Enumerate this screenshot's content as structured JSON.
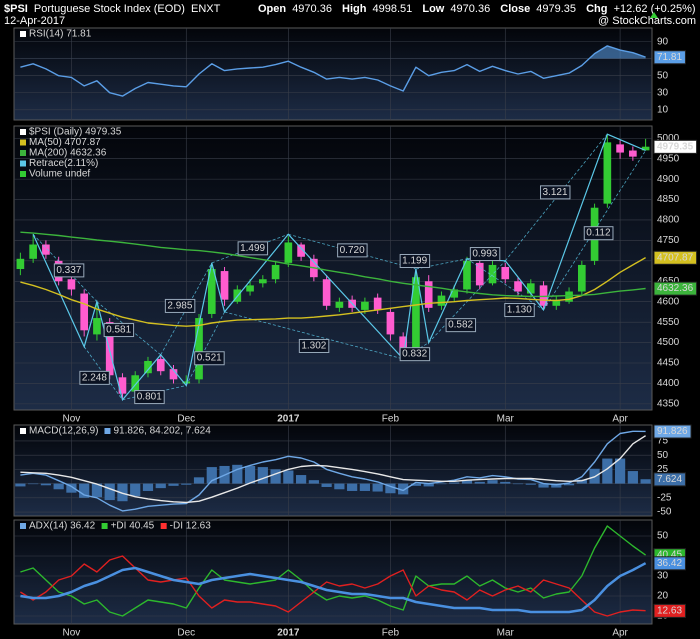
{
  "header": {
    "symbol": "$PSI",
    "name": "Portuguese Stock Index (EOD)",
    "exchange": "ENXT",
    "date": "12-Apr-2017",
    "quote": [
      {
        "label": "Open",
        "value": "4970.36"
      },
      {
        "label": "High",
        "value": "4998.51"
      },
      {
        "label": "Low",
        "value": "4970.36"
      },
      {
        "label": "Close",
        "value": "4979.35"
      },
      {
        "label": "Chg",
        "value": "+12.62 (+0.25%)"
      }
    ],
    "credit": "@ StockCharts.com"
  },
  "chart_data": [
    {
      "type": "line",
      "legend_layout": "row",
      "grid": true,
      "legend": [
        {
          "text": "RSI(14) 71.81",
          "color": "#ffffff"
        }
      ],
      "categories": [
        null,
        null,
        null,
        null,
        "Nov",
        null,
        null,
        null,
        null,
        null,
        null,
        null,
        null,
        "Dec",
        null,
        null,
        null,
        null,
        null,
        null,
        null,
        "2017",
        null,
        null,
        null,
        null,
        null,
        null,
        null,
        "Feb",
        null,
        null,
        null,
        null,
        null,
        null,
        null,
        null,
        "Mar",
        null,
        null,
        null,
        null,
        null,
        null,
        null,
        null,
        "Apr",
        null,
        null
      ],
      "series": [
        {
          "color": "#5b9ee6",
          "tag": true,
          "fill_above": 70,
          "values": [
            60,
            64,
            58,
            50,
            48,
            38,
            44,
            30,
            26,
            35,
            42,
            40,
            38,
            37,
            52,
            64,
            56,
            58,
            59,
            60,
            63,
            67,
            60,
            54,
            46,
            48,
            46,
            48,
            45,
            38,
            32,
            60,
            50,
            54,
            56,
            63,
            55,
            61,
            56,
            52,
            55,
            47,
            50,
            53,
            62,
            76,
            85,
            80,
            77,
            71.81
          ]
        }
      ],
      "ylim": [
        -2,
        106
      ],
      "yticks": [
        90,
        70,
        50,
        30,
        10
      ]
    },
    {
      "type": "candlestick",
      "legend_layout": "column",
      "grid": true,
      "x_labels": true,
      "tag": true,
      "legend": [
        {
          "text": "$PSI (Daily) 4979.35",
          "color": "#ffffff"
        },
        {
          "text": "MA(50) 4707.87",
          "color": "#d4c020"
        },
        {
          "text": "MA(200) 4632.36",
          "color": "#3cb43c"
        },
        {
          "text": "Retrace(2.11%)",
          "color": "#5bc8e8"
        },
        {
          "text": "Volume undef",
          "color": "#33cc33"
        }
      ],
      "categories": [
        null,
        null,
        null,
        null,
        "Nov",
        null,
        null,
        null,
        null,
        null,
        null,
        null,
        null,
        "Dec",
        null,
        null,
        null,
        null,
        null,
        null,
        null,
        "2017",
        null,
        null,
        null,
        null,
        null,
        null,
        null,
        "Feb",
        null,
        null,
        null,
        null,
        null,
        null,
        null,
        null,
        "Mar",
        null,
        null,
        null,
        null,
        null,
        null,
        null,
        null,
        "Apr",
        null,
        null
      ],
      "up_color": "#33cc33",
      "down_color": "#ff5ccf",
      "open": [
        4680,
        4705,
        4740,
        4700,
        4655,
        4620,
        4520,
        4550,
        4415,
        4380,
        4425,
        4460,
        4435,
        4400,
        4410,
        4570,
        4675,
        4600,
        4625,
        4645,
        4655,
        4695,
        4740,
        4705,
        4655,
        4585,
        4605,
        4580,
        4610,
        4575,
        4515,
        4480,
        4650,
        4590,
        4610,
        4630,
        4695,
        4645,
        4685,
        4650,
        4620,
        4640,
        4590,
        4600,
        4625,
        4700,
        4840,
        4985,
        4970,
        4970.36
      ],
      "high": [
        4720,
        4765,
        4750,
        4710,
        4665,
        4630,
        4600,
        4560,
        4425,
        4430,
        4465,
        4470,
        4445,
        4420,
        4570,
        4695,
        4685,
        4640,
        4655,
        4665,
        4700,
        4760,
        4745,
        4715,
        4665,
        4610,
        4615,
        4610,
        4620,
        4585,
        4525,
        4680,
        4665,
        4625,
        4640,
        4710,
        4705,
        4700,
        4695,
        4660,
        4655,
        4650,
        4615,
        4635,
        4700,
        4840,
        5010,
        4995,
        4980,
        4998.51
      ],
      "low": [
        4665,
        4695,
        4705,
        4640,
        4615,
        4515,
        4505,
        4410,
        4360,
        4370,
        4415,
        4420,
        4400,
        4395,
        4400,
        4560,
        4590,
        4595,
        4615,
        4635,
        4645,
        4685,
        4700,
        4650,
        4580,
        4575,
        4575,
        4570,
        4570,
        4505,
        4460,
        4470,
        4575,
        4580,
        4600,
        4620,
        4630,
        4640,
        4645,
        4615,
        4610,
        4580,
        4580,
        4595,
        4615,
        4690,
        4830,
        4950,
        4945,
        4970.36
      ],
      "close": [
        4705,
        4740,
        4715,
        4650,
        4630,
        4530,
        4560,
        4420,
        4375,
        4420,
        4455,
        4430,
        4410,
        4405,
        4560,
        4680,
        4605,
        4630,
        4640,
        4655,
        4690,
        4745,
        4710,
        4660,
        4590,
        4600,
        4585,
        4600,
        4580,
        4520,
        4470,
        4660,
        4585,
        4615,
        4630,
        4700,
        4640,
        4690,
        4655,
        4625,
        4645,
        4590,
        4605,
        4625,
        4690,
        4830,
        4990,
        4965,
        4955,
        4979.35
      ],
      "series": [
        {
          "color": "#d4c020",
          "tag": true,
          "values": [
            4648,
            4640,
            4630,
            4618,
            4605,
            4595,
            4582,
            4572,
            4562,
            4555,
            4548,
            4545,
            4542,
            4540,
            4542,
            4548,
            4552,
            4555,
            4556,
            4557,
            4558,
            4560,
            4560,
            4562,
            4565,
            4568,
            4572,
            4576,
            4580,
            4584,
            4588,
            4592,
            4596,
            4598,
            4600,
            4603,
            4605,
            4607,
            4609,
            4608,
            4606,
            4604,
            4603,
            4606,
            4615,
            4630,
            4650,
            4672,
            4690,
            4707.87
          ]
        },
        {
          "color": "#3cb43c",
          "tag": true,
          "values": [
            4770,
            4768,
            4765,
            4762,
            4758,
            4755,
            4751,
            4748,
            4745,
            4741,
            4737,
            4733,
            4730,
            4727,
            4725,
            4722,
            4718,
            4713,
            4708,
            4703,
            4698,
            4692,
            4688,
            4683,
            4677,
            4672,
            4667,
            4661,
            4656,
            4650,
            4645,
            4641,
            4637,
            4633,
            4628,
            4624,
            4620,
            4617,
            4615,
            4614,
            4613,
            4613,
            4614,
            4615,
            4616,
            4618,
            4622,
            4626,
            4629,
            4632.36
          ]
        }
      ],
      "zigzag": {
        "color": "#5bc8e8",
        "x": [
          1,
          5,
          6,
          8,
          11,
          13,
          15,
          16,
          21,
          30,
          31,
          32,
          35,
          38,
          41,
          46,
          49
        ],
        "y": [
          4765,
          4490,
          4600,
          4360,
          4470,
          4395,
          4695,
          4575,
          4765,
          4460,
          4680,
          4500,
          4705,
          4700,
          4580,
          5010,
          4970
        ]
      },
      "annotations": [
        {
          "text": "0.337",
          "x": 3.8,
          "y": 4677
        },
        {
          "text": "0.581",
          "x": 7.7,
          "y": 4531
        },
        {
          "text": "2.248",
          "x": 5.8,
          "y": 4414
        },
        {
          "text": "0.801",
          "x": 10.1,
          "y": 4367
        },
        {
          "text": "2.985",
          "x": 12.5,
          "y": 4590
        },
        {
          "text": "0.521",
          "x": 14.8,
          "y": 4462
        },
        {
          "text": "1.499",
          "x": 18.2,
          "y": 4731
        },
        {
          "text": "1.302",
          "x": 23.0,
          "y": 4492
        },
        {
          "text": "0.720",
          "x": 26.0,
          "y": 4726
        },
        {
          "text": "0.832",
          "x": 30.9,
          "y": 4472
        },
        {
          "text": "1.199",
          "x": 30.9,
          "y": 4700
        },
        {
          "text": "0.582",
          "x": 34.5,
          "y": 4543
        },
        {
          "text": "0.993",
          "x": 36.4,
          "y": 4717
        },
        {
          "text": "1.130",
          "x": 39.1,
          "y": 4580
        },
        {
          "text": "3.121",
          "x": 41.9,
          "y": 4868
        },
        {
          "text": "0.112",
          "x": 45.3,
          "y": 4768
        }
      ],
      "ylim": [
        4335,
        5030
      ],
      "yticks": [
        4350,
        4400,
        4450,
        4500,
        4550,
        4600,
        4650,
        4700,
        4750,
        4800,
        4850,
        4900,
        4950,
        5000
      ]
    },
    {
      "type": "line",
      "legend_layout": "row",
      "grid": true,
      "legend": [
        {
          "text": "MACD(12,26,9)",
          "color": "#ffffff"
        },
        {
          "text": "91.826, 84.202, 7.624",
          "color": "#6fa8e6"
        }
      ],
      "categories": [
        null,
        null,
        null,
        null,
        "Nov",
        null,
        null,
        null,
        null,
        null,
        null,
        null,
        null,
        "Dec",
        null,
        null,
        null,
        null,
        null,
        null,
        null,
        "2017",
        null,
        null,
        null,
        null,
        null,
        null,
        null,
        "Feb",
        null,
        null,
        null,
        null,
        null,
        null,
        null,
        null,
        "Mar",
        null,
        null,
        null,
        null,
        null,
        null,
        null,
        null,
        "Apr",
        null,
        null
      ],
      "series": [
        {
          "color": "#3d6fa8",
          "style": "histogram",
          "tag": true,
          "values": [
            -5,
            -1,
            -3,
            -10,
            -16,
            -25,
            -24,
            -29,
            -31,
            -22,
            -13,
            -8,
            -4,
            -2,
            11,
            29,
            31,
            33,
            31,
            29,
            25,
            23,
            15,
            6,
            -6,
            -10,
            -13,
            -13,
            -14,
            -17,
            -19,
            -4,
            -5,
            -1,
            2,
            6,
            3,
            6,
            3,
            -1,
            -2,
            -7,
            -7,
            -3,
            7,
            26,
            44,
            44,
            22,
            7.624
          ]
        },
        {
          "color": "#6fa8e6",
          "tag": true,
          "values": [
            15,
            18,
            15,
            5,
            -5,
            -20,
            -25,
            -38,
            -48,
            -45,
            -40,
            -38,
            -36,
            -35,
            -20,
            5,
            15,
            25,
            32,
            38,
            42,
            48,
            45,
            38,
            25,
            18,
            12,
            8,
            3,
            -5,
            -12,
            2,
            0,
            3,
            6,
            12,
            10,
            14,
            12,
            8,
            7,
            0,
            -2,
            1,
            12,
            38,
            70,
            88,
            92,
            91.826
          ]
        },
        {
          "color": "#e8e8e8",
          "values": [
            20,
            19,
            18,
            15,
            11,
            5,
            -1,
            -9,
            -17,
            -23,
            -27,
            -30,
            -32,
            -33,
            -31,
            -24,
            -16,
            -8,
            1,
            9,
            17,
            25,
            30,
            32,
            31,
            28,
            25,
            21,
            17,
            12,
            7,
            6,
            5,
            4,
            4,
            6,
            7,
            8,
            9,
            9,
            9,
            7,
            5,
            4,
            5,
            12,
            26,
            44,
            70,
            84.202
          ]
        }
      ],
      "ylim": [
        -57,
        103
      ],
      "yticks": [
        75,
        50,
        25,
        0,
        -25,
        -50
      ]
    },
    {
      "type": "line",
      "legend_layout": "row",
      "grid": true,
      "x_labels": true,
      "legend": [
        {
          "text": "ADX(14) 36.42",
          "color": "#6fa8e6"
        },
        {
          "text": "+DI 40.45",
          "color": "#33cc33"
        },
        {
          "text": "-DI 12.63",
          "color": "#ff3030"
        }
      ],
      "categories": [
        null,
        null,
        null,
        null,
        "Nov",
        null,
        null,
        null,
        null,
        null,
        null,
        null,
        null,
        "Dec",
        null,
        null,
        null,
        null,
        null,
        null,
        null,
        "2017",
        null,
        null,
        null,
        null,
        null,
        null,
        null,
        "Feb",
        null,
        null,
        null,
        null,
        null,
        null,
        null,
        null,
        "Mar",
        null,
        null,
        null,
        null,
        null,
        null,
        null,
        null,
        "Apr",
        null,
        null
      ],
      "series": [
        {
          "color": "#2db82d",
          "tag": true,
          "values": [
            32,
            34,
            28,
            22,
            20,
            16,
            18,
            12,
            10,
            14,
            18,
            17,
            16,
            14,
            24,
            33,
            28,
            27,
            26,
            27,
            28,
            33,
            28,
            22,
            18,
            20,
            19,
            20,
            18,
            15,
            13,
            30,
            25,
            26,
            26,
            30,
            25,
            28,
            24,
            22,
            24,
            19,
            21,
            22,
            30,
            44,
            55,
            50,
            45,
            40.45
          ]
        },
        {
          "color": "#e02020",
          "tag": true,
          "values": [
            22,
            18,
            22,
            28,
            30,
            36,
            32,
            38,
            40,
            34,
            28,
            27,
            28,
            29,
            20,
            14,
            18,
            17,
            17,
            16,
            15,
            12,
            17,
            22,
            27,
            25,
            26,
            24,
            26,
            30,
            33,
            20,
            25,
            23,
            22,
            18,
            23,
            20,
            23,
            25,
            22,
            28,
            26,
            24,
            18,
            12,
            10,
            12,
            13,
            12.63
          ]
        },
        {
          "color": "#4a90e0",
          "tag": true,
          "width": 2.5,
          "values": [
            20,
            19,
            19,
            20,
            22,
            25,
            27,
            30,
            33,
            34,
            32,
            30,
            28,
            27,
            26,
            28,
            29,
            30,
            31,
            30,
            29,
            28,
            27,
            25,
            23,
            22,
            21,
            21,
            20,
            19,
            19,
            17,
            16,
            15,
            14,
            14,
            14,
            13,
            13,
            13,
            12,
            12,
            12,
            12,
            13,
            18,
            25,
            30,
            33,
            36.42
          ]
        }
      ],
      "ylim": [
        6,
        58
      ],
      "yticks": [
        50,
        40,
        30,
        20,
        10
      ]
    }
  ]
}
